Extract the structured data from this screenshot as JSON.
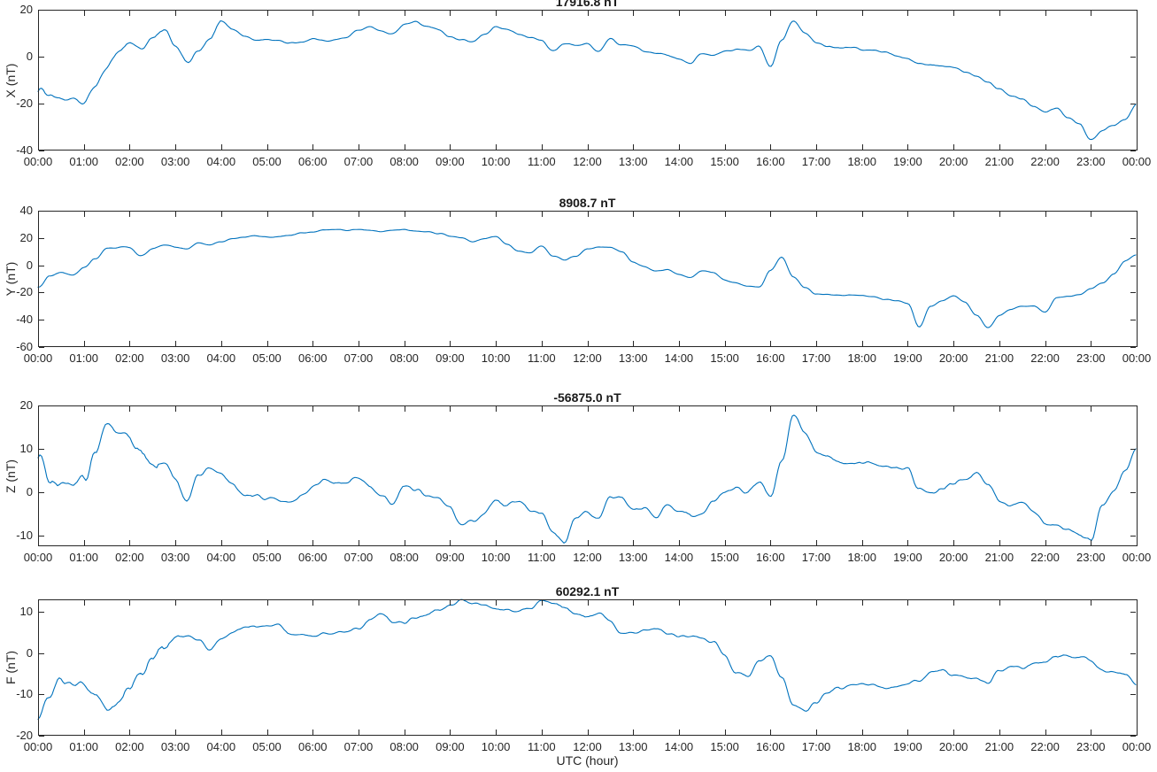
{
  "figure": {
    "background": "#ffffff",
    "axis_color": "#262626",
    "text_color": "#262626"
  },
  "chart_data": {
    "type": "line",
    "title": "",
    "xlabel": "UTC (hour)",
    "x_range_hours": [
      0,
      24
    ],
    "sample_interval_hours": 0.25,
    "x_ticks": [
      "00:00",
      "01:00",
      "02:00",
      "03:00",
      "04:00",
      "05:00",
      "06:00",
      "07:00",
      "08:00",
      "09:00",
      "10:00",
      "11:00",
      "12:00",
      "13:00",
      "14:00",
      "15:00",
      "16:00",
      "17:00",
      "18:00",
      "19:00",
      "20:00",
      "21:00",
      "22:00",
      "23:00",
      "00:00"
    ],
    "line_color": "#0072bd",
    "grid": false,
    "legend": "none",
    "panels": [
      {
        "title": "17916.8 nT",
        "ylabel": "X (nT)",
        "ylim": [
          -40,
          20
        ],
        "yticks": [
          20,
          0,
          -20,
          -40
        ],
        "noise": {
          "early_until": 4.0,
          "early_amp": 0.7,
          "late_amp": 0.3
        },
        "values": [
          -13.5,
          -16,
          -18,
          -18.5,
          -20,
          -12.5,
          -5,
          2.5,
          6,
          3.5,
          7.5,
          11,
          5,
          -2.5,
          2,
          7,
          15,
          11.9,
          8.9,
          7,
          7.2,
          7,
          5.7,
          6.3,
          7.6,
          6.9,
          7.2,
          8.2,
          11.5,
          12.8,
          10.8,
          9.5,
          14,
          15,
          12.8,
          11.5,
          8.3,
          6.9,
          6.3,
          9.5,
          12.8,
          11.5,
          9.5,
          8.2,
          6.9,
          2.4,
          5.4,
          5,
          5.4,
          2.4,
          7.6,
          5,
          4.4,
          2.4,
          1.8,
          0.5,
          -0.8,
          -2.7,
          1.1,
          0.5,
          2.4,
          3.1,
          2.4,
          4.4,
          -4.3,
          7,
          15.4,
          10,
          6,
          4.5,
          4,
          4.2,
          3,
          2.6,
          2,
          0.5,
          -1,
          -3,
          -3.4,
          -4,
          -4.6,
          -6.6,
          -8.5,
          -11,
          -13.7,
          -16.5,
          -17.8,
          -20.8,
          -23.4,
          -21.8,
          -25.9,
          -28.5,
          -35.5,
          -31.5,
          -29,
          -26.5,
          -20.5
        ]
      },
      {
        "title": "8908.7 nT",
        "ylabel": "Y (nT)",
        "ylim": [
          -60,
          40
        ],
        "yticks": [
          40,
          20,
          0,
          -20,
          -40,
          -60
        ],
        "noise": {
          "early_until": 3.5,
          "early_amp": 0.45,
          "late_amp": 0.28
        },
        "values": [
          -17,
          -8,
          -5,
          -7.5,
          -1.5,
          4.5,
          12.5,
          13,
          12.8,
          7,
          11.9,
          15.1,
          13,
          11.9,
          16.2,
          15.1,
          17.3,
          19.5,
          20.5,
          21.6,
          20.5,
          21,
          22,
          23.8,
          24.3,
          26,
          26.4,
          25.6,
          26,
          25.6,
          25,
          25.6,
          26.4,
          25,
          24.3,
          23.4,
          21.6,
          19.9,
          17.3,
          19.5,
          21.2,
          15.1,
          10,
          9.1,
          14.1,
          6.5,
          3.9,
          6.5,
          11.9,
          13.3,
          13.3,
          9.7,
          2.2,
          -1.1,
          -4.3,
          -3.2,
          -6.5,
          -8.7,
          -4.3,
          -5.4,
          -10.8,
          -13,
          -15.2,
          -16.2,
          -4,
          6,
          -8.7,
          -16.2,
          -21.2,
          -21.6,
          -22,
          -21.6,
          -22.2,
          -23.3,
          -24.9,
          -26,
          -28.1,
          -45,
          -30,
          -26,
          -22.5,
          -27.1,
          -36.8,
          -46,
          -36.8,
          -32.5,
          -29.9,
          -29.9,
          -34.6,
          -23.8,
          -22.7,
          -21.6,
          -17.3,
          -13,
          -6.5,
          3.2,
          7.6
        ]
      },
      {
        "title": "-56875.0 nT",
        "ylabel": "Z (nT)",
        "ylim": [
          -12.5,
          20
        ],
        "yticks": [
          20,
          10,
          0,
          -10
        ],
        "noise": {
          "early_until": 2.6,
          "early_amp": 1.0,
          "late_amp": 0.4
        },
        "values": [
          8.5,
          2.5,
          1,
          2,
          2.5,
          9,
          16,
          14.5,
          12.5,
          9,
          7,
          7,
          3,
          -2.5,
          3.5,
          5.5,
          4.8,
          1.5,
          -0.5,
          -1,
          -1.5,
          -1.8,
          -2.5,
          -1,
          1,
          3,
          2,
          2.5,
          3.5,
          1,
          -1,
          -2.5,
          1.4,
          0.7,
          -0.7,
          -1.7,
          -3.5,
          -7.9,
          -6.9,
          -4.8,
          -1.7,
          -3.1,
          -2,
          -4.1,
          -4.8,
          -9.3,
          -11.7,
          -5.9,
          -4.5,
          -5.9,
          -1,
          -1.4,
          -3.8,
          -3.5,
          -5.9,
          -2.8,
          -4.5,
          -5.2,
          -4.8,
          -1.7,
          -0.3,
          1.1,
          -0.3,
          2.4,
          -1,
          7.2,
          17.9,
          14.1,
          9.3,
          8.3,
          6.9,
          6.6,
          6.9,
          6.6,
          6.2,
          5.5,
          5.2,
          1,
          -0.3,
          0.7,
          2.1,
          2.8,
          4.1,
          1.7,
          -1.7,
          -3.1,
          -2.8,
          -4.5,
          -7.3,
          -7.3,
          -8.6,
          -10,
          -11,
          -3,
          0,
          5,
          9.5
        ]
      },
      {
        "title": "60292.1 nT",
        "ylabel": "F (nT)",
        "ylim": [
          -20,
          13
        ],
        "yticks": [
          10,
          0,
          -10,
          -20
        ],
        "noise": {
          "early_until": 3.2,
          "early_amp": 0.85,
          "late_amp": 0.3
        },
        "values": [
          -14.5,
          -10,
          -7,
          -8.5,
          -7.5,
          -10.5,
          -13,
          -12.5,
          -8.4,
          -4.9,
          -1.3,
          1.6,
          4.3,
          4,
          3.4,
          1,
          3.2,
          5.1,
          6.2,
          6.4,
          6.5,
          6.8,
          4.8,
          4.5,
          4.1,
          4.8,
          5,
          5,
          5.8,
          8,
          9.5,
          7.6,
          7.4,
          8.7,
          9.4,
          10.5,
          11.6,
          12.8,
          12,
          11.8,
          10.5,
          10.6,
          10.2,
          10.8,
          12.8,
          12.3,
          11,
          9.7,
          8.7,
          9.4,
          7.6,
          4.8,
          5,
          5.5,
          5.8,
          4.8,
          4.1,
          4.2,
          3.7,
          2.6,
          -0.6,
          -4.5,
          -5.6,
          -2,
          -0.4,
          -6.3,
          -12.7,
          -14.1,
          -12,
          -9.5,
          -8.4,
          -7.7,
          -7.8,
          -7.8,
          -8.2,
          -8,
          -7.5,
          -6.6,
          -4.5,
          -4.2,
          -5.2,
          -5.9,
          -6.3,
          -7.5,
          -4.2,
          -3.3,
          -3.4,
          -2.7,
          -1.9,
          -0.9,
          -0.6,
          -0.9,
          -1.9,
          -4.2,
          -4.5,
          -5,
          -8.1
        ]
      }
    ]
  }
}
